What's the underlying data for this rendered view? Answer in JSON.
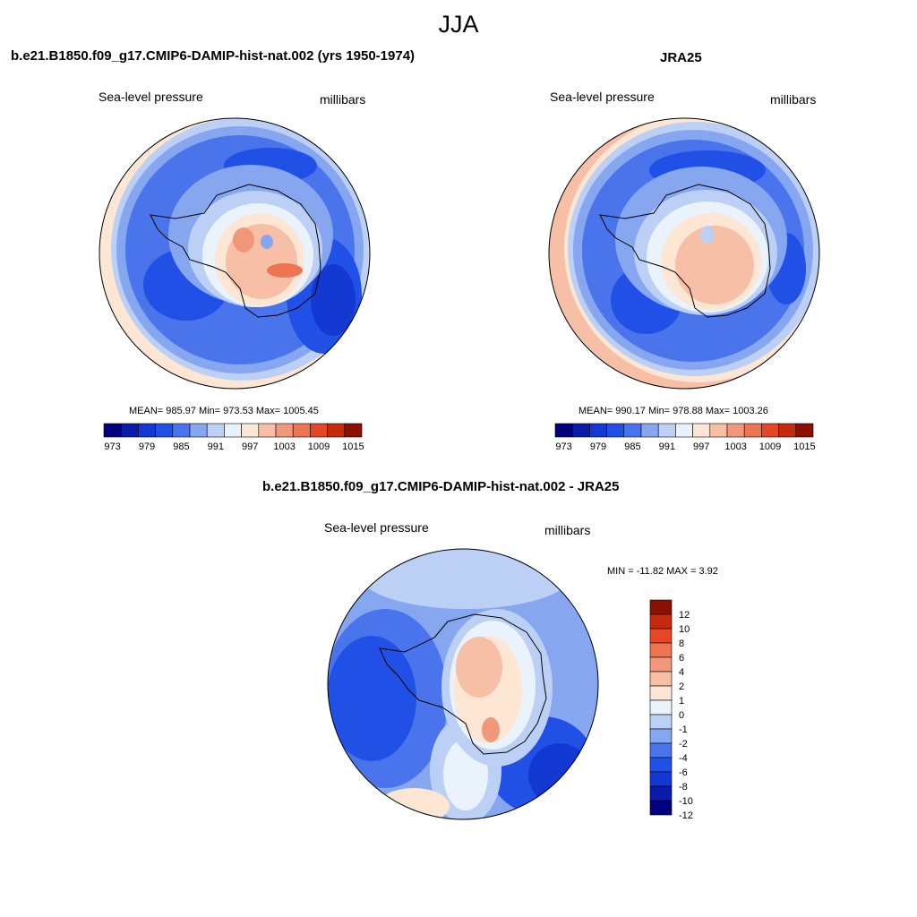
{
  "page_title": "JJA",
  "colors": {
    "abs_scale": [
      "#00007f",
      "#0a1aa9",
      "#1438d2",
      "#2050e6",
      "#4a74ec",
      "#86a6f0",
      "#bcd0f6",
      "#eaf2fc",
      "#fde6d4",
      "#f6bfa6",
      "#f2987a",
      "#ec7450",
      "#e64624",
      "#c62a0c",
      "#8c1000"
    ],
    "diff_scale": [
      "#00007f",
      "#0a1aa9",
      "#1438d2",
      "#2050e6",
      "#4a74ec",
      "#86a6f0",
      "#bcd0f6",
      "#eaf2fc",
      "#fde6d4",
      "#f6bfa6",
      "#f2987a",
      "#ec7450",
      "#e64624",
      "#c62a0c",
      "#8c1000"
    ],
    "coast": "#000000"
  },
  "panels": {
    "model": {
      "title": "b.e21.B1850.f09_g17.CMIP6-DAMIP-hist-nat.002 (yrs 1950-1974)",
      "field_label": "Sea-level pressure",
      "units_label": "millibars",
      "stats": "MEAN= 985.97  Min= 973.53  Max= 1005.45",
      "colorbar_ticks": [
        "973",
        "979",
        "985",
        "991",
        "997",
        "1003",
        "1009",
        "1015"
      ]
    },
    "obs": {
      "title": "JRA25",
      "field_label": "Sea-level pressure",
      "units_label": "millibars",
      "stats": "MEAN= 990.17  Min= 978.88  Max= 1003.26",
      "colorbar_ticks": [
        "973",
        "979",
        "985",
        "991",
        "997",
        "1003",
        "1009",
        "1015"
      ]
    },
    "diff": {
      "title": "b.e21.B1850.f09_g17.CMIP6-DAMIP-hist-nat.002 - JRA25",
      "field_label": "Sea-level pressure",
      "units_label": "millibars",
      "stats": "MIN = -11.82 MAX =   3.92",
      "colorbar_ticks": [
        "12",
        "10",
        "8",
        "6",
        "4",
        "2",
        "1",
        "0",
        "-1",
        "-2",
        "-4",
        "-6",
        "-8",
        "-10",
        "-12"
      ]
    }
  }
}
